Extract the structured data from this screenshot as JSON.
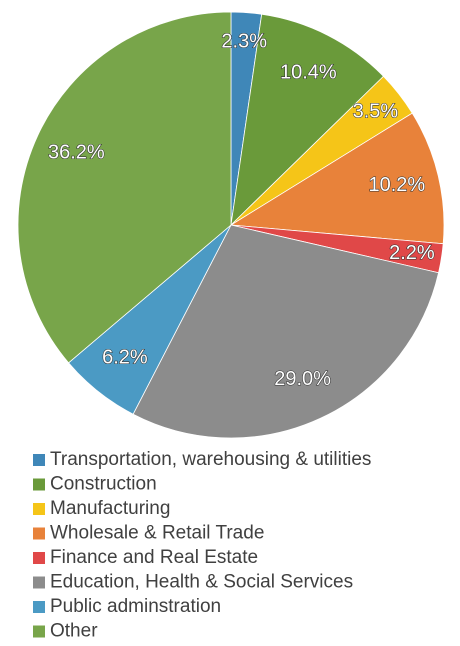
{
  "chart_data": {
    "type": "pie",
    "categories": [
      "Transportation, warehousing & utilities",
      "Construction",
      "Manufacturing",
      "Wholesale & Retail Trade",
      "Finance and Real Estate",
      "Education, Health & Social Services",
      "Public adminstration",
      "Other"
    ],
    "values": [
      2.3,
      10.4,
      3.5,
      10.2,
      2.2,
      29.0,
      6.2,
      36.2
    ],
    "value_labels": [
      "2.3%",
      "10.4%",
      "3.5%",
      "10.2%",
      "2.2%",
      "29.0%",
      "6.2%",
      "36.2%"
    ],
    "colors": [
      "#3f87b8",
      "#6a9a3a",
      "#f5c518",
      "#e8823a",
      "#e04848",
      "#8c8c8c",
      "#4b9ac4",
      "#78a54a"
    ],
    "legend": "bottom"
  }
}
